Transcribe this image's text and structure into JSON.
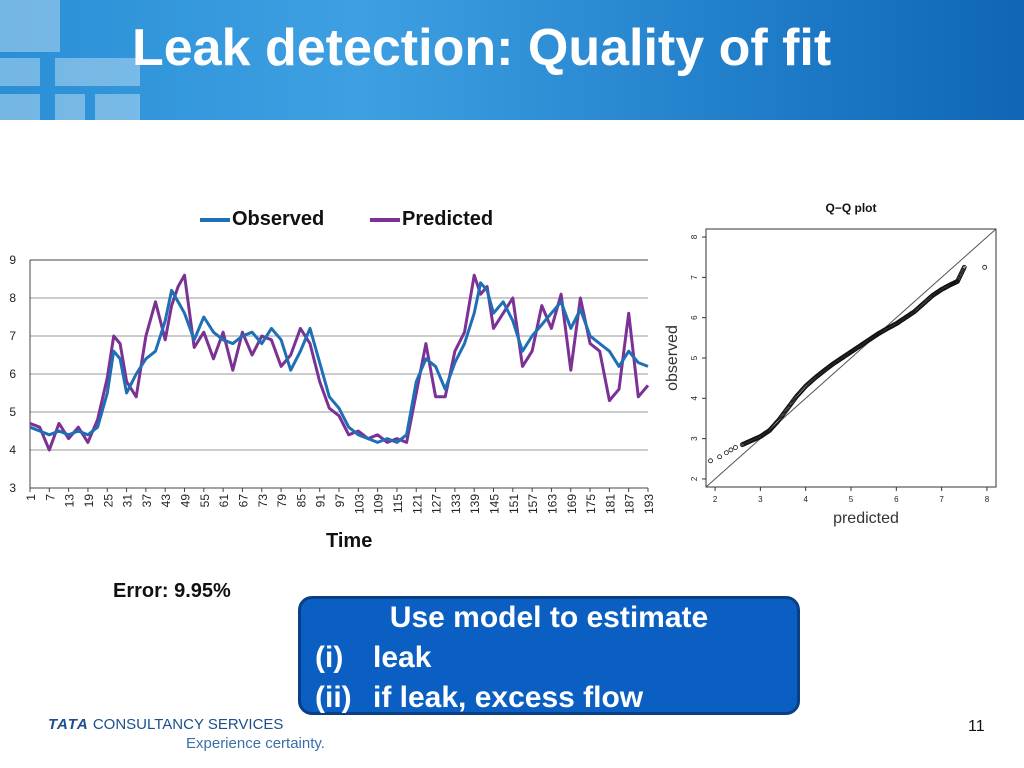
{
  "slide": {
    "title": "Leak detection: Quality of fit",
    "error_text": "Error: 9.95%",
    "callout": {
      "heading": "Use model to estimate",
      "items": [
        {
          "num": "(i)",
          "text": "leak"
        },
        {
          "num": "(ii)",
          "text": "if leak, excess flow"
        }
      ]
    },
    "footer": {
      "logo_brand": "TATA",
      "logo_text": "CONSULTANCY SERVICES",
      "tagline": "Experience certainty.",
      "page_number": "11"
    }
  },
  "colors": {
    "observed": "#1f6fb5",
    "predicted": "#7b3294",
    "banner": "#2a8fd6",
    "callout": "#0b5fc2"
  },
  "chart_data": [
    {
      "type": "line",
      "title": "",
      "xlabel": "Time",
      "ylabel": "",
      "ylim": [
        3,
        9
      ],
      "yticks": [
        3,
        4,
        5,
        6,
        7,
        8,
        9
      ],
      "xlim": [
        1,
        193
      ],
      "xticks": [
        1,
        7,
        13,
        19,
        25,
        31,
        37,
        43,
        49,
        55,
        61,
        67,
        73,
        79,
        85,
        91,
        97,
        103,
        109,
        115,
        121,
        127,
        133,
        139,
        145,
        151,
        157,
        163,
        169,
        175,
        181,
        187,
        193
      ],
      "grid": true,
      "legend": "top",
      "series": [
        {
          "name": "Observed",
          "x": [
            1,
            4,
            7,
            10,
            13,
            16,
            19,
            22,
            25,
            27,
            29,
            31,
            34,
            37,
            40,
            43,
            45,
            47,
            49,
            52,
            55,
            58,
            61,
            64,
            67,
            70,
            73,
            76,
            79,
            82,
            85,
            88,
            91,
            94,
            97,
            100,
            103,
            106,
            109,
            112,
            115,
            118,
            121,
            124,
            127,
            130,
            133,
            136,
            139,
            141,
            143,
            145,
            148,
            151,
            154,
            157,
            160,
            163,
            166,
            169,
            172,
            175,
            178,
            181,
            184,
            187,
            190,
            193
          ],
          "values": [
            4.6,
            4.5,
            4.4,
            4.5,
            4.4,
            4.5,
            4.4,
            4.6,
            5.5,
            6.6,
            6.4,
            5.5,
            6.0,
            6.4,
            6.6,
            7.4,
            8.2,
            7.9,
            7.6,
            6.9,
            7.5,
            7.1,
            6.9,
            6.8,
            7.0,
            7.1,
            6.8,
            7.2,
            6.9,
            6.1,
            6.6,
            7.2,
            6.3,
            5.4,
            5.1,
            4.6,
            4.4,
            4.3,
            4.2,
            4.3,
            4.2,
            4.4,
            5.8,
            6.4,
            6.2,
            5.6,
            6.3,
            6.8,
            7.6,
            8.4,
            8.2,
            7.6,
            7.9,
            7.4,
            6.6,
            7.0,
            7.3,
            7.6,
            7.9,
            7.2,
            7.7,
            7.0,
            6.8,
            6.6,
            6.2,
            6.6,
            6.3,
            6.2
          ]
        },
        {
          "name": "Predicted",
          "x": [
            1,
            4,
            7,
            10,
            13,
            16,
            19,
            22,
            25,
            27,
            29,
            31,
            34,
            37,
            40,
            43,
            45,
            47,
            49,
            52,
            55,
            58,
            61,
            64,
            67,
            70,
            73,
            76,
            79,
            82,
            85,
            88,
            91,
            94,
            97,
            100,
            103,
            106,
            109,
            112,
            115,
            118,
            121,
            124,
            127,
            130,
            133,
            136,
            139,
            141,
            143,
            145,
            148,
            151,
            154,
            157,
            160,
            163,
            166,
            169,
            172,
            175,
            178,
            181,
            184,
            187,
            190,
            193
          ],
          "values": [
            4.7,
            4.6,
            4.0,
            4.7,
            4.3,
            4.6,
            4.2,
            4.8,
            5.9,
            7.0,
            6.8,
            5.8,
            5.4,
            7.0,
            7.9,
            6.9,
            7.8,
            8.3,
            8.6,
            6.7,
            7.1,
            6.4,
            7.1,
            6.1,
            7.1,
            6.5,
            7.0,
            6.9,
            6.2,
            6.5,
            7.2,
            6.8,
            5.8,
            5.1,
            4.9,
            4.4,
            4.5,
            4.3,
            4.4,
            4.2,
            4.3,
            4.2,
            5.5,
            6.8,
            5.4,
            5.4,
            6.6,
            7.1,
            8.6,
            8.1,
            8.3,
            7.2,
            7.6,
            8.0,
            6.2,
            6.6,
            7.8,
            7.2,
            8.1,
            6.1,
            8.0,
            6.8,
            6.6,
            5.3,
            5.6,
            7.6,
            5.4,
            5.7
          ]
        }
      ]
    },
    {
      "type": "scatter",
      "title": "Q−Q plot",
      "xlabel": "predicted",
      "ylabel": "observed",
      "xlim": [
        1.8,
        8.2
      ],
      "ylim": [
        1.8,
        8.2
      ],
      "xticks": [
        2,
        3,
        4,
        5,
        6,
        7,
        8
      ],
      "yticks": [
        2,
        3,
        4,
        5,
        6,
        7,
        8
      ],
      "reference_line": "y = x",
      "series": [
        {
          "name": "",
          "x": [
            1.9,
            2.1,
            2.25,
            2.35,
            2.45,
            2.6,
            2.8,
            3.0,
            3.2,
            3.4,
            3.6,
            3.8,
            4.0,
            4.2,
            4.4,
            4.6,
            4.8,
            5.0,
            5.2,
            5.4,
            5.6,
            5.8,
            6.0,
            6.2,
            6.4,
            6.6,
            6.8,
            7.0,
            7.2,
            7.35,
            7.5,
            7.95
          ],
          "values": [
            2.45,
            2.55,
            2.65,
            2.72,
            2.78,
            2.85,
            2.95,
            3.05,
            3.2,
            3.45,
            3.75,
            4.05,
            4.3,
            4.5,
            4.68,
            4.85,
            5.0,
            5.15,
            5.3,
            5.45,
            5.6,
            5.73,
            5.85,
            6.0,
            6.15,
            6.35,
            6.55,
            6.7,
            6.82,
            6.9,
            7.25,
            7.25
          ]
        }
      ]
    }
  ]
}
